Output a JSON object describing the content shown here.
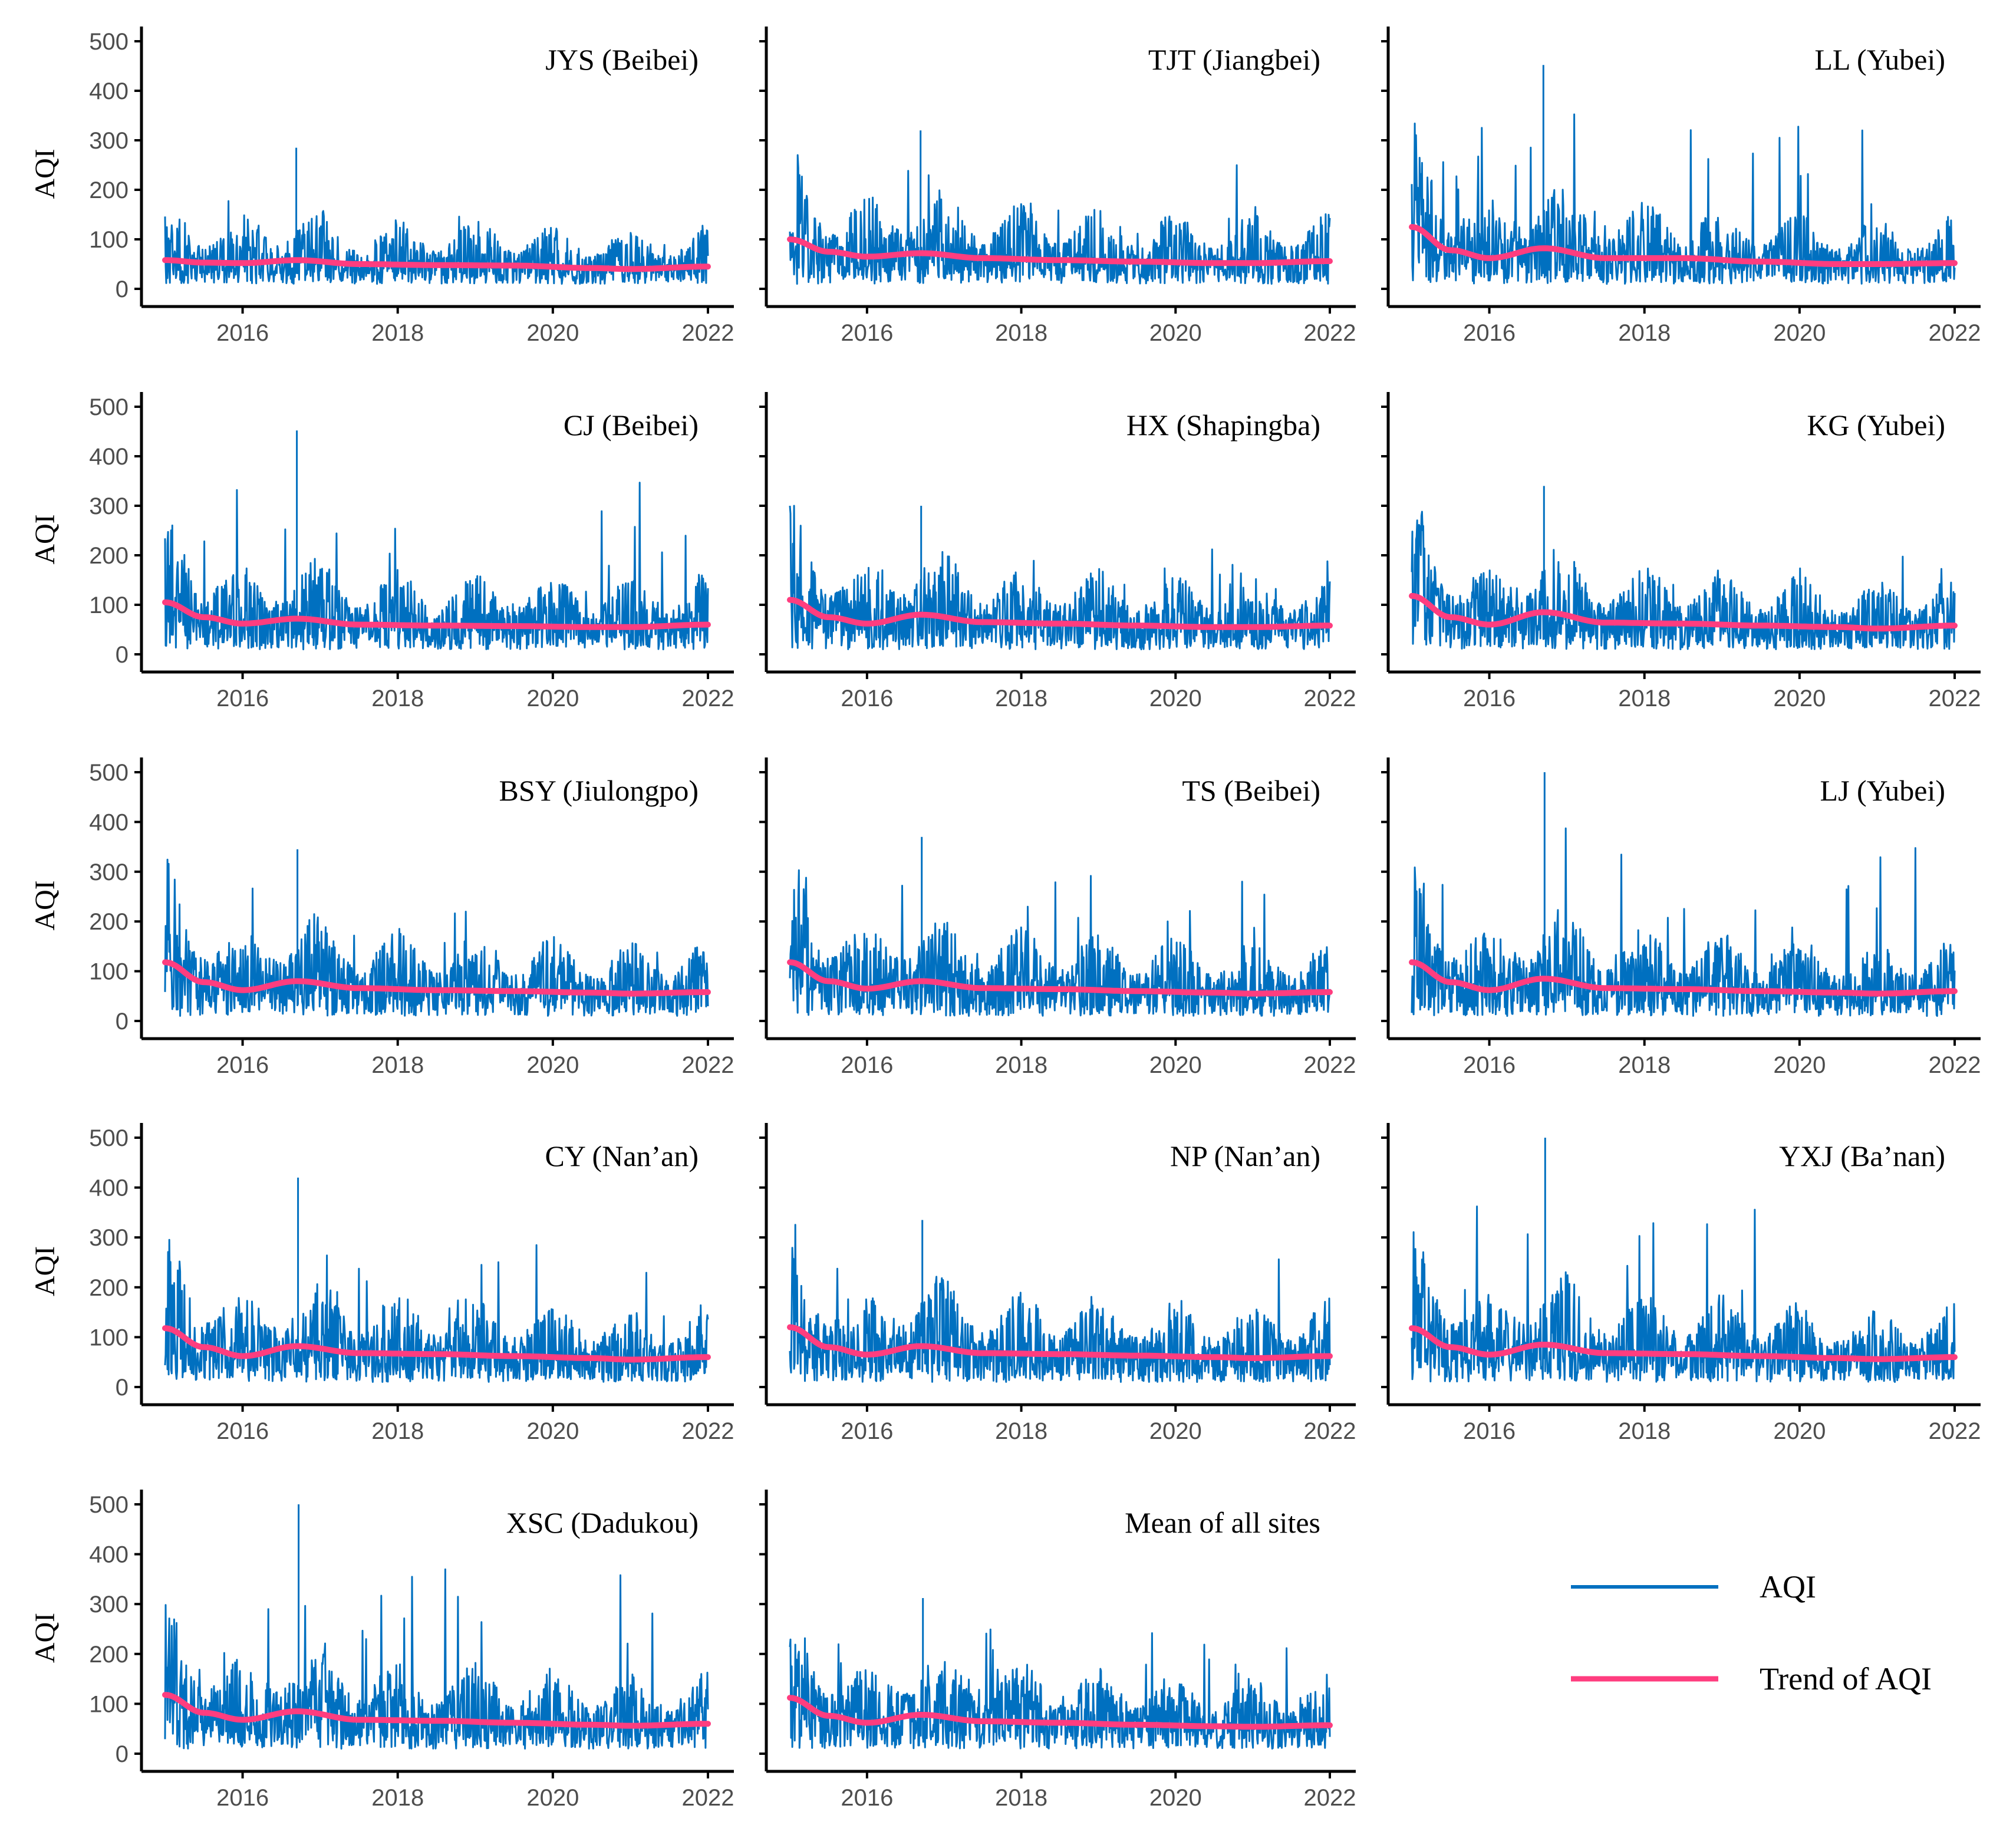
{
  "chart_data": {
    "type": "line",
    "ylabel": "AQI",
    "ylim": [
      0,
      500
    ],
    "y_ticks": [
      0,
      100,
      200,
      300,
      400,
      500
    ],
    "xlim": [
      "2015-01-01",
      "2022-01-01"
    ],
    "x_ticks": [
      "2016",
      "2018",
      "2020",
      "2022"
    ],
    "series_names": [
      "AQI",
      "Trend of AQI"
    ],
    "colors": {
      "aqi": "#0070c0",
      "trend": "#ff3d7f"
    },
    "legend": {
      "position": "bottom-right",
      "entries": [
        "AQI",
        "Trend of AQI"
      ]
    },
    "grid": false,
    "panels": [
      {
        "title": "JYS (Beibei)",
        "aqi_range": [
          10,
          285
        ],
        "trend": {
          "x": [
            2015.0,
            2015.5,
            2016.0,
            2016.7,
            2017.5,
            2018.5,
            2019.5,
            2020.5,
            2021.0,
            2022.0
          ],
          "y": [
            58,
            53,
            52,
            58,
            50,
            48,
            47,
            42,
            40,
            45
          ]
        }
      },
      {
        "title": "TJT (Jiangbei)",
        "aqi_range": [
          10,
          320
        ],
        "trend": {
          "x": [
            2015.0,
            2015.5,
            2016.0,
            2016.7,
            2017.5,
            2018.5,
            2019.5,
            2020.5,
            2021.0,
            2022.0
          ],
          "y": [
            100,
            75,
            65,
            72,
            62,
            58,
            55,
            52,
            52,
            56
          ]
        }
      },
      {
        "title": "LL (Yubei)",
        "aqi_range": [
          10,
          452
        ],
        "trend": {
          "x": [
            2015.0,
            2015.5,
            2016.0,
            2016.7,
            2017.5,
            2018.5,
            2019.5,
            2020.5,
            2021.0,
            2022.0
          ],
          "y": [
            125,
            78,
            62,
            82,
            62,
            62,
            55,
            50,
            50,
            52
          ]
        }
      },
      {
        "title": "CJ (Beibei)",
        "aqi_range": [
          10,
          452
        ],
        "trend": {
          "x": [
            2015.0,
            2015.5,
            2016.0,
            2016.7,
            2017.5,
            2018.5,
            2019.5,
            2020.5,
            2021.0,
            2022.0
          ],
          "y": [
            105,
            75,
            62,
            72,
            60,
            58,
            57,
            55,
            55,
            60
          ]
        }
      },
      {
        "title": "HX (Shapingba)",
        "aqi_range": [
          10,
          300
        ],
        "trend": {
          "x": [
            2015.0,
            2015.5,
            2016.0,
            2016.7,
            2017.5,
            2018.5,
            2019.5,
            2020.5,
            2021.0,
            2022.0
          ],
          "y": [
            110,
            75,
            62,
            80,
            65,
            62,
            58,
            55,
            55,
            58
          ]
        }
      },
      {
        "title": "KG (Yubei)",
        "aqi_range": [
          10,
          340
        ],
        "trend": {
          "x": [
            2015.0,
            2015.5,
            2016.0,
            2016.7,
            2017.5,
            2018.5,
            2019.5,
            2020.5,
            2021.0,
            2022.0
          ],
          "y": [
            118,
            75,
            60,
            85,
            64,
            62,
            58,
            55,
            52,
            58
          ]
        }
      },
      {
        "title": "BSY (Jiulongpo)",
        "aqi_range": [
          10,
          345
        ],
        "trend": {
          "x": [
            2015.0,
            2015.5,
            2016.0,
            2016.7,
            2017.5,
            2018.5,
            2019.5,
            2020.5,
            2021.0,
            2022.0
          ],
          "y": [
            118,
            78,
            62,
            80,
            66,
            62,
            60,
            57,
            55,
            58
          ]
        }
      },
      {
        "title": "TS (Beibei)",
        "aqi_range": [
          10,
          370
        ],
        "trend": {
          "x": [
            2015.0,
            2015.5,
            2016.0,
            2016.7,
            2017.5,
            2018.5,
            2019.5,
            2020.5,
            2021.0,
            2022.0
          ],
          "y": [
            118,
            80,
            65,
            80,
            66,
            64,
            60,
            57,
            55,
            58
          ]
        }
      },
      {
        "title": "LJ (Yubei)",
        "aqi_range": [
          10,
          500
        ],
        "trend": {
          "x": [
            2015.0,
            2015.5,
            2016.0,
            2016.7,
            2017.5,
            2018.5,
            2019.5,
            2020.5,
            2021.0,
            2022.0
          ],
          "y": [
            118,
            78,
            62,
            85,
            66,
            64,
            60,
            57,
            55,
            60
          ]
        }
      },
      {
        "title": "CY (Nan’an)",
        "aqi_range": [
          10,
          420
        ],
        "trend": {
          "x": [
            2015.0,
            2015.5,
            2016.0,
            2016.7,
            2017.5,
            2018.5,
            2019.5,
            2020.5,
            2021.0,
            2022.0
          ],
          "y": [
            118,
            80,
            62,
            82,
            68,
            66,
            62,
            58,
            55,
            60
          ]
        }
      },
      {
        "title": "NP (Nan’an)",
        "aqi_range": [
          10,
          335
        ],
        "trend": {
          "x": [
            2015.0,
            2015.5,
            2016.0,
            2016.7,
            2017.5,
            2018.5,
            2019.5,
            2020.5,
            2021.0,
            2022.0
          ],
          "y": [
            120,
            80,
            65,
            82,
            68,
            66,
            63,
            60,
            58,
            62
          ]
        }
      },
      {
        "title": "YXJ (Ba’nan)",
        "aqi_range": [
          10,
          500
        ],
        "trend": {
          "x": [
            2015.0,
            2015.5,
            2016.0,
            2016.7,
            2017.5,
            2018.5,
            2019.5,
            2020.5,
            2021.0,
            2022.0
          ],
          "y": [
            118,
            80,
            65,
            85,
            68,
            66,
            62,
            58,
            56,
            60
          ]
        }
      },
      {
        "title": "XSC (Dadukou)",
        "aqi_range": [
          10,
          500
        ],
        "trend": {
          "x": [
            2015.0,
            2015.5,
            2016.0,
            2016.7,
            2017.5,
            2018.5,
            2019.5,
            2020.5,
            2021.0,
            2022.0
          ],
          "y": [
            118,
            82,
            68,
            85,
            68,
            66,
            62,
            58,
            56,
            60
          ]
        }
      },
      {
        "title": "Mean of all sites",
        "aqi_range": [
          10,
          312
        ],
        "trend": {
          "x": [
            2015.0,
            2015.5,
            2016.0,
            2016.7,
            2017.5,
            2018.5,
            2019.5,
            2020.5,
            2021.0,
            2022.0
          ],
          "y": [
            112,
            76,
            62,
            78,
            65,
            62,
            58,
            55,
            54,
            57
          ]
        }
      }
    ]
  }
}
